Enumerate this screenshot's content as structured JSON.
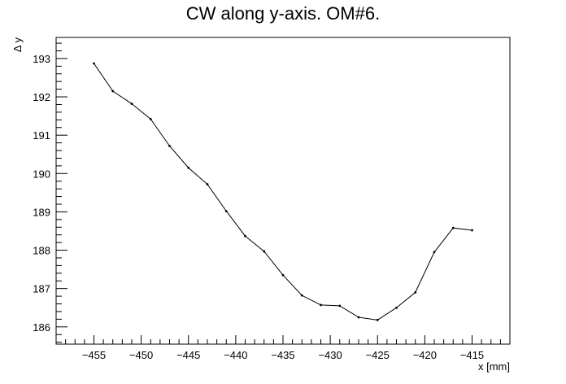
{
  "chart_data": {
    "type": "line",
    "title": "CW along y-axis. OM#6.",
    "xlabel": "x [mm]",
    "ylabel": "Δ y",
    "xlim": [
      -459,
      -411
    ],
    "ylim": [
      185.55,
      193.55
    ],
    "grid": false,
    "x_ticks": [
      -455,
      -450,
      -445,
      -440,
      -435,
      -430,
      -425,
      -420,
      -415
    ],
    "x_tick_labels": [
      "−455",
      "−450",
      "−445",
      "−440",
      "−435",
      "−430",
      "−425",
      "−420",
      "−415"
    ],
    "y_ticks": [
      186,
      187,
      188,
      189,
      190,
      191,
      192,
      193
    ],
    "y_tick_labels": [
      "186",
      "187",
      "188",
      "189",
      "190",
      "191",
      "192",
      "193"
    ],
    "series": [
      {
        "name": "CW along y-axis",
        "color": "#000000",
        "x": [
          -455,
          -453,
          -451,
          -449,
          -447,
          -445,
          -443,
          -441,
          -439,
          -437,
          -435,
          -433,
          -431,
          -429,
          -427,
          -425,
          -423,
          -421,
          -419,
          -417,
          -415
        ],
        "y": [
          192.87,
          192.15,
          191.82,
          191.42,
          190.72,
          190.15,
          189.72,
          189.02,
          188.37,
          187.97,
          187.35,
          186.82,
          186.57,
          186.55,
          186.25,
          186.18,
          186.5,
          186.9,
          187.95,
          188.58,
          188.52
        ]
      }
    ]
  }
}
